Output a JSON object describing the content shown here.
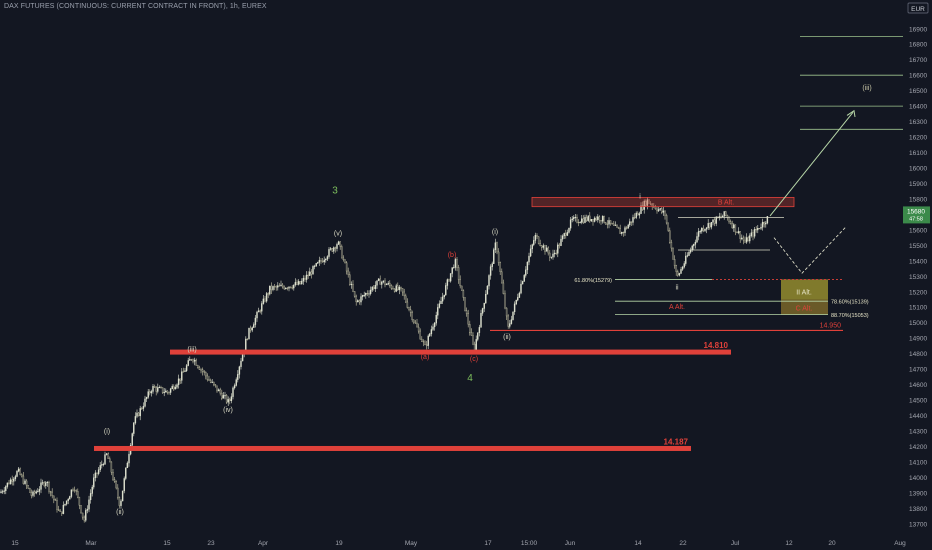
{
  "title": "DAX FUTURES (CONTINUOUS: CURRENT CONTRACT IN FRONT), 1h, EUREX",
  "currency_badge": "EUR",
  "last_price_badge": {
    "price": "15680",
    "sub": "47:58"
  },
  "colors": {
    "background": "#131722",
    "candle_up": "#e2e5d3",
    "candle_down": "#c8c6a6",
    "resistance_red": "#e0413a",
    "fib_green": "#b7d7a8",
    "target_box": "#807a2c",
    "axis_text": "#a3a6af",
    "wave_label": "#d9d9c4"
  },
  "chart_data": {
    "type": "line",
    "y_axis_ticks": [
      13700,
      13800,
      13900,
      14000,
      14100,
      14200,
      14300,
      14400,
      14500,
      14600,
      14700,
      14800,
      14900,
      15000,
      15100,
      15200,
      15300,
      15400,
      15500,
      15600,
      15700,
      15800,
      15900,
      16000,
      16100,
      16200,
      16300,
      16400,
      16500,
      16600,
      16700,
      16800,
      16900
    ],
    "ylim": [
      13660,
      16960
    ],
    "x_axis_ticks": [
      "15",
      "Mar",
      "15",
      "23",
      "Apr",
      "19",
      "May",
      "17",
      "15:00",
      "Jun",
      "14",
      "22",
      "Jul",
      "12",
      "20",
      "Aug"
    ],
    "price_path": [
      {
        "t": 0,
        "y": 13900
      },
      {
        "t": 18,
        "y": 14040
      },
      {
        "t": 32,
        "y": 13880
      },
      {
        "t": 46,
        "y": 13980
      },
      {
        "t": 60,
        "y": 13760
      },
      {
        "t": 74,
        "y": 13950
      },
      {
        "t": 84,
        "y": 13720
      },
      {
        "t": 94,
        "y": 13990
      },
      {
        "t": 107,
        "y": 14150
      },
      {
        "t": 120,
        "y": 13820
      },
      {
        "t": 134,
        "y": 14360
      },
      {
        "t": 152,
        "y": 14580
      },
      {
        "t": 168,
        "y": 14550
      },
      {
        "t": 180,
        "y": 14640
      },
      {
        "t": 192,
        "y": 14780
      },
      {
        "t": 210,
        "y": 14620
      },
      {
        "t": 229,
        "y": 14480
      },
      {
        "t": 248,
        "y": 14930
      },
      {
        "t": 270,
        "y": 15220
      },
      {
        "t": 300,
        "y": 15250
      },
      {
        "t": 338,
        "y": 15520
      },
      {
        "t": 356,
        "y": 15130
      },
      {
        "t": 380,
        "y": 15270
      },
      {
        "t": 402,
        "y": 15200
      },
      {
        "t": 425,
        "y": 14840
      },
      {
        "t": 455,
        "y": 15400
      },
      {
        "t": 474,
        "y": 14820
      },
      {
        "t": 496,
        "y": 15520
      },
      {
        "t": 508,
        "y": 14960
      },
      {
        "t": 535,
        "y": 15560
      },
      {
        "t": 552,
        "y": 15420
      },
      {
        "t": 572,
        "y": 15660
      },
      {
        "t": 600,
        "y": 15680
      },
      {
        "t": 622,
        "y": 15580
      },
      {
        "t": 647,
        "y": 15790
      },
      {
        "t": 665,
        "y": 15700
      },
      {
        "t": 677,
        "y": 15290
      },
      {
        "t": 700,
        "y": 15600
      },
      {
        "t": 725,
        "y": 15700
      },
      {
        "t": 745,
        "y": 15520
      },
      {
        "t": 768,
        "y": 15680
      }
    ],
    "horizontal_levels": [
      {
        "label": "14.187",
        "value": 14187
      },
      {
        "label": "14.810",
        "value": 14810
      },
      {
        "label": "14.950",
        "value": 14950
      }
    ],
    "fib_levels": [
      {
        "label": "61.80%(15279)",
        "value": 15279
      },
      {
        "label": "78.60%(15139)",
        "value": 15139
      },
      {
        "label": "88.70%(15053)",
        "value": 15053
      }
    ],
    "zones": [
      {
        "label": "B Alt.",
        "low": 15750,
        "high": 15810
      },
      {
        "label": "II Alt.",
        "low": 15150,
        "high": 15280
      },
      {
        "label": "C Alt.",
        "low": 15050,
        "high": 15150
      }
    ],
    "alt_level_label": "A Alt.",
    "wave_labels": [
      "(i)",
      "(ii)",
      "(iii)",
      "(iv)",
      "(v)",
      "3",
      "(a)",
      "(b)",
      "(c)",
      "4",
      "(i)",
      "(ii)",
      "i",
      "ii",
      "(iii)"
    ],
    "projection_targets": [
      16250,
      16400,
      16600,
      16850
    ]
  }
}
